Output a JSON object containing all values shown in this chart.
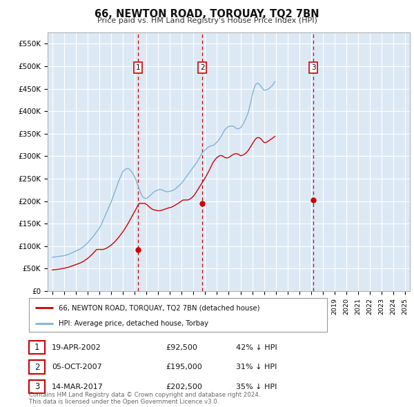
{
  "title": "66, NEWTON ROAD, TORQUAY, TQ2 7BN",
  "subtitle": "Price paid vs. HM Land Registry's House Price Index (HPI)",
  "ylim": [
    0,
    575000
  ],
  "yticks": [
    0,
    50000,
    100000,
    150000,
    200000,
    250000,
    300000,
    350000,
    400000,
    450000,
    500000,
    550000
  ],
  "ytick_labels": [
    "£0",
    "£50K",
    "£100K",
    "£150K",
    "£200K",
    "£250K",
    "£300K",
    "£350K",
    "£400K",
    "£450K",
    "£500K",
    "£550K"
  ],
  "xlim_left": 1994.6,
  "xlim_right": 2025.4,
  "plot_bg_color": "#dce9f5",
  "grid_color": "#ffffff",
  "hpi_line_color": "#7fb3d3",
  "price_line_color": "#cc0000",
  "vline_color": "#cc0000",
  "sale_marker_color": "#cc0000",
  "sales": [
    {
      "date_num": 2002.29,
      "price": 92500,
      "label": "1"
    },
    {
      "date_num": 2007.75,
      "price": 195000,
      "label": "2"
    },
    {
      "date_num": 2017.2,
      "price": 202500,
      "label": "3"
    }
  ],
  "sale_dates_str": [
    "19-APR-2002",
    "05-OCT-2007",
    "14-MAR-2017"
  ],
  "sale_prices_str": [
    "£92,500",
    "£195,000",
    "£202,500"
  ],
  "sale_hpi_pct": [
    "42% ↓ HPI",
    "31% ↓ HPI",
    "35% ↓ HPI"
  ],
  "legend_house": "66, NEWTON ROAD, TORQUAY, TQ2 7BN (detached house)",
  "legend_hpi": "HPI: Average price, detached house, Torbay",
  "footer": "Contains HM Land Registry data © Crown copyright and database right 2024.\nThis data is licensed under the Open Government Licence v3.0.",
  "hpi_monthly": [
    75000,
    75300,
    75600,
    75900,
    76200,
    76500,
    76800,
    77100,
    77400,
    77700,
    78000,
    78300,
    78600,
    79200,
    79800,
    80400,
    81000,
    82000,
    83000,
    84000,
    85000,
    86000,
    87000,
    88000,
    89000,
    90000,
    91000,
    92000,
    93000,
    94500,
    96000,
    97500,
    99000,
    101000,
    103000,
    105000,
    107000,
    109500,
    112000,
    114500,
    117000,
    119500,
    122000,
    125000,
    128000,
    131000,
    134000,
    137000,
    140000,
    144000,
    148000,
    153000,
    158000,
    163000,
    168000,
    173000,
    178000,
    183000,
    188000,
    193000,
    198000,
    204000,
    210000,
    216000,
    222000,
    228000,
    234000,
    240000,
    246000,
    251000,
    256000,
    261000,
    266000,
    268000,
    270000,
    271000,
    272000,
    273000,
    272000,
    270000,
    268000,
    265000,
    262000,
    258000,
    254000,
    249000,
    243000,
    237000,
    231000,
    225000,
    219000,
    214000,
    210000,
    208000,
    207000,
    206000,
    206000,
    207000,
    209000,
    211000,
    213000,
    215000,
    217000,
    219000,
    221000,
    222000,
    223000,
    224000,
    225000,
    225500,
    226000,
    225500,
    225000,
    224000,
    223000,
    222000,
    221000,
    221000,
    221000,
    221500,
    222000,
    222500,
    223000,
    224000,
    225000,
    226000,
    228000,
    230000,
    232000,
    234000,
    236000,
    238000,
    240000,
    243000,
    246000,
    249000,
    252000,
    255000,
    258000,
    261000,
    264000,
    267000,
    270000,
    273000,
    276000,
    279000,
    282000,
    285000,
    288000,
    292000,
    296000,
    300000,
    304000,
    307000,
    310000,
    312000,
    314000,
    316000,
    318000,
    320000,
    321000,
    322000,
    323000,
    323500,
    324000,
    325000,
    327000,
    329000,
    331000,
    334000,
    337000,
    340000,
    343000,
    347000,
    351000,
    355000,
    359000,
    361000,
    363000,
    365000,
    366000,
    366500,
    367000,
    367000,
    367000,
    366000,
    365000,
    363000,
    361000,
    361000,
    361000,
    362000,
    363000,
    366000,
    369000,
    373000,
    377000,
    382000,
    387000,
    392000,
    398000,
    407000,
    416000,
    426000,
    436000,
    444000,
    452000,
    457000,
    461000,
    462000,
    462000,
    460000,
    458000,
    455000,
    452000,
    449000,
    447000,
    447000,
    447000,
    448000,
    449000,
    450000,
    452000,
    454000,
    456000,
    459000,
    462000,
    466000
  ],
  "hpi_start_year": 1995,
  "price_monthly": [
    47000,
    47200,
    47400,
    47600,
    47800,
    48000,
    48300,
    48600,
    49000,
    49400,
    49800,
    50200,
    50600,
    51100,
    51600,
    52100,
    52600,
    53300,
    54000,
    54800,
    55600,
    56400,
    57200,
    58000,
    58800,
    59600,
    60400,
    61200,
    62000,
    63000,
    64000,
    65200,
    66400,
    67800,
    69200,
    70800,
    72400,
    74200,
    76200,
    78200,
    80200,
    82400,
    84600,
    87000,
    89500,
    92000,
    92500,
    92500,
    92500,
    92500,
    92500,
    92500,
    92500,
    93200,
    94000,
    95000,
    96200,
    97500,
    99000,
    100500,
    102200,
    104000,
    106000,
    108000,
    110200,
    112500,
    115000,
    117500,
    120200,
    123000,
    126000,
    129000,
    132000,
    135000,
    138500,
    142000,
    145500,
    149200,
    153000,
    157000,
    161000,
    165000,
    169000,
    173000,
    177000,
    181000,
    185000,
    189000,
    193000,
    195000,
    195000,
    195000,
    195000,
    195000,
    195000,
    194000,
    193000,
    191000,
    189000,
    187000,
    185000,
    183500,
    182000,
    181000,
    180500,
    180000,
    179500,
    179000,
    178500,
    178500,
    179000,
    179500,
    180000,
    180700,
    181500,
    182200,
    183000,
    183800,
    184500,
    185000,
    185500,
    186000,
    187000,
    188000,
    189300,
    190500,
    191800,
    193000,
    194500,
    196000,
    197500,
    199000,
    200500,
    202000,
    202500,
    202500,
    202500,
    202500,
    202500,
    203000,
    204000,
    205500,
    207000,
    209000,
    211000,
    214000,
    217000,
    220500,
    224000,
    227500,
    231000,
    234500,
    238000,
    241500,
    245000,
    248500,
    252000,
    256000,
    260000,
    264000,
    268000,
    272500,
    277000,
    281500,
    286000,
    289000,
    292000,
    294500,
    297000,
    298500,
    300000,
    301000,
    301500,
    301000,
    300000,
    298500,
    297000,
    296500,
    296000,
    296500,
    297000,
    298500,
    300000,
    301500,
    303000,
    304000,
    305000,
    305500,
    305500,
    305000,
    304000,
    302500,
    301000,
    301500,
    302000,
    303000,
    304500,
    306000,
    308000,
    310500,
    313000,
    316500,
    320000,
    323500,
    327000,
    330500,
    334000,
    337000,
    339500,
    341000,
    341500,
    341000,
    340000,
    338000,
    335500,
    333000,
    330500,
    330000,
    330500,
    331500,
    333000,
    334500,
    336000,
    337500,
    339000,
    340500,
    342000,
    344000
  ]
}
